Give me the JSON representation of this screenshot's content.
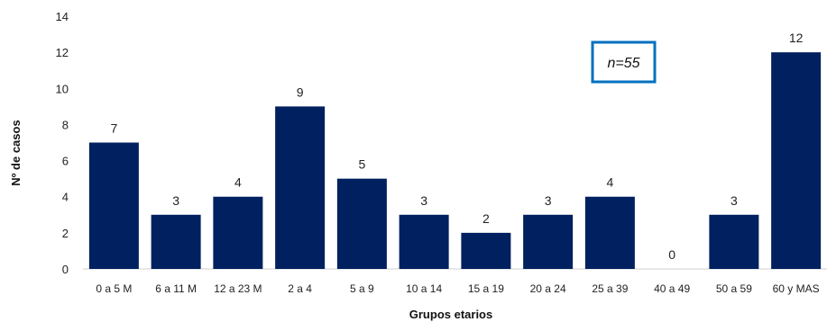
{
  "chart_data": {
    "type": "bar",
    "title": "",
    "xlabel": "Grupos etarios",
    "ylabel": "Nº de casos",
    "categories": [
      "0 a 5 M",
      "6 a 11 M",
      "12 a 23 M",
      "2 a 4",
      "5 a 9",
      "10 a 14",
      "15 a 19",
      "20 a 24",
      "25 a 39",
      "40 a 49",
      "50 a 59",
      "60 y MAS"
    ],
    "values": [
      7,
      3,
      4,
      9,
      5,
      3,
      2,
      3,
      4,
      0,
      3,
      12
    ],
    "ylim": [
      0,
      14
    ],
    "yticks": [
      0,
      2,
      4,
      6,
      8,
      10,
      12,
      14
    ],
    "grid": false,
    "legend": "none",
    "bar_color": "#002060",
    "annotation": {
      "text": "n=55",
      "border_color": "#0070C0"
    }
  }
}
